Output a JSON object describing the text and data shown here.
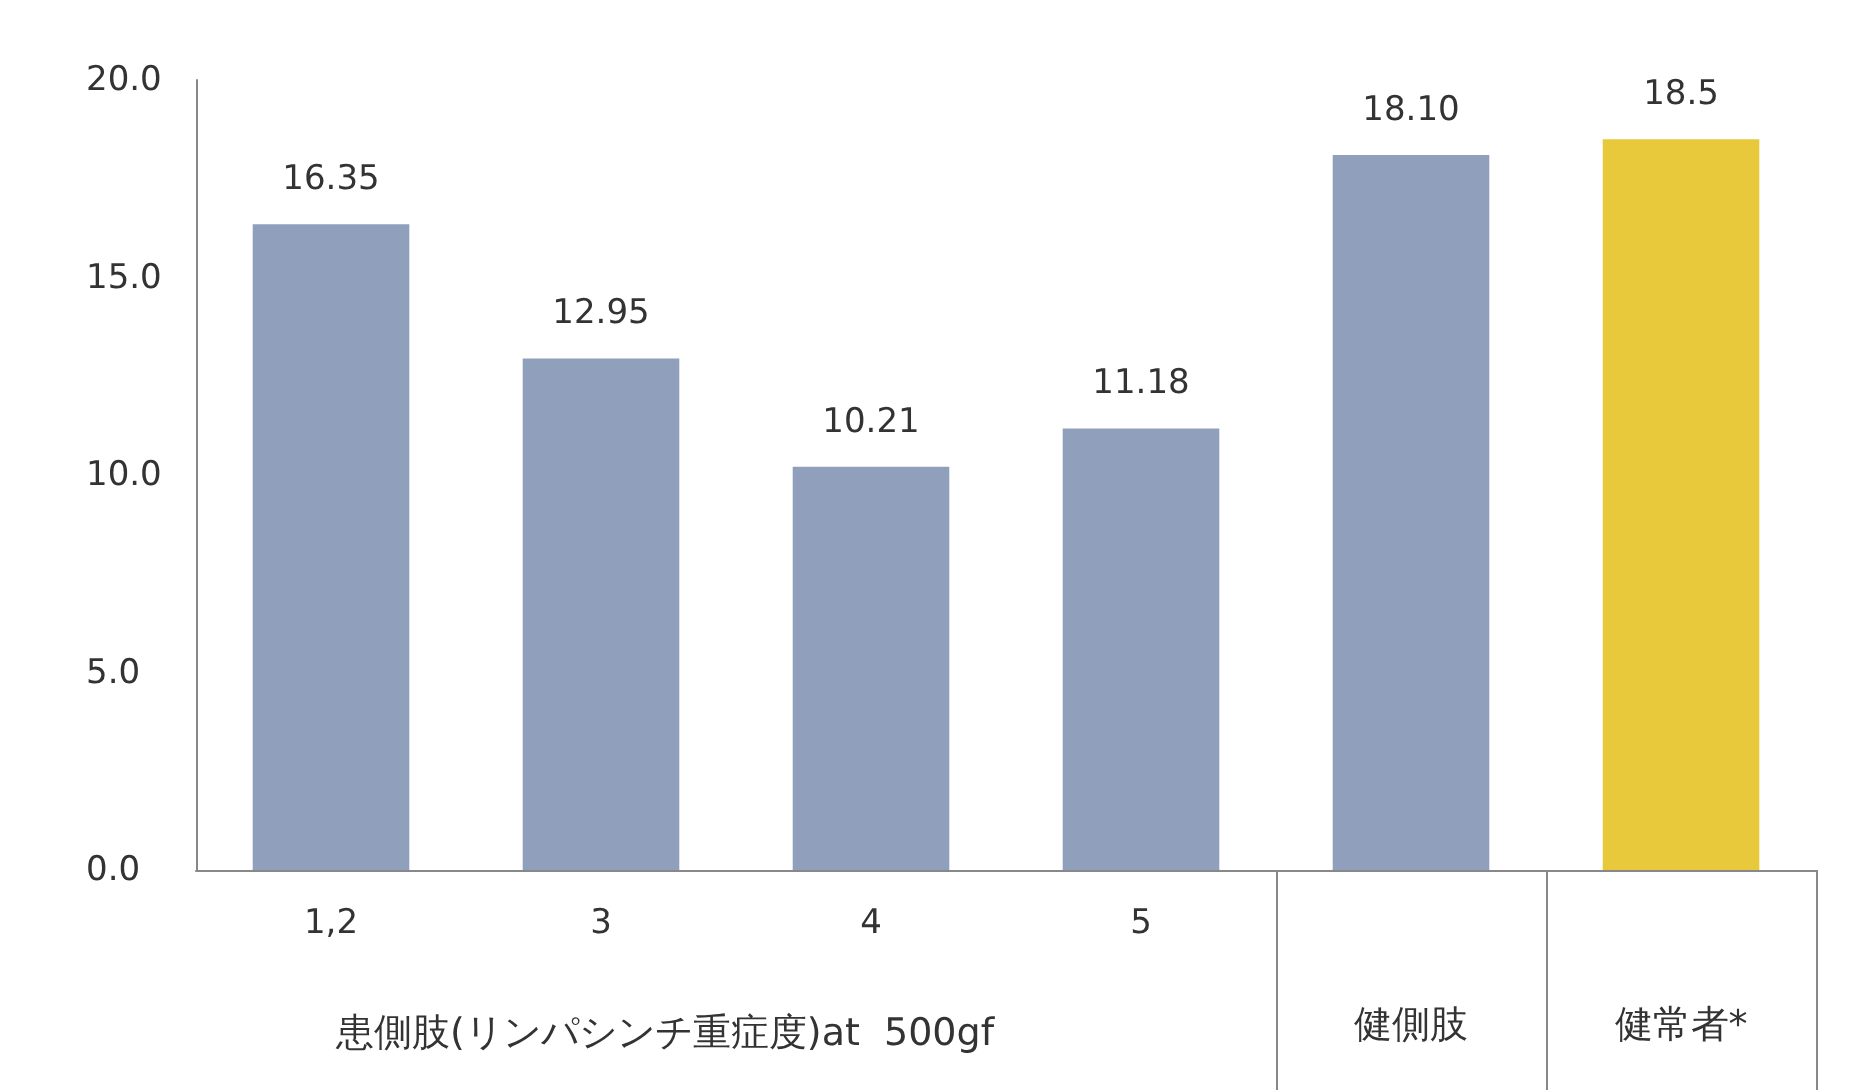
{
  "chart_data": {
    "type": "bar",
    "xlabel": "患側肢(リンパシンチ重症度)at  500gf",
    "categories": [
      "1,2",
      "3",
      "4",
      "5",
      "健側肢",
      "健常者*"
    ],
    "values": [
      16.35,
      12.95,
      10.21,
      11.18,
      18.1,
      18.5
    ],
    "value_labels": [
      "16.35",
      "12.95",
      "10.21",
      "11.18",
      "18.10",
      "18.5"
    ],
    "colors": [
      "#8f9fbc",
      "#8f9fbc",
      "#8f9fbc",
      "#8f9fbc",
      "#8f9fbc",
      "#e8c93c"
    ],
    "ylim": [
      0,
      20
    ],
    "yticks": [
      {
        "value": 0,
        "label": "0.0"
      },
      {
        "value": 5,
        "label": "5.0"
      },
      {
        "value": 10,
        "label": "10.0"
      },
      {
        "value": 15,
        "label": "15.0"
      },
      {
        "value": 20,
        "label": "20.0"
      }
    ],
    "grid": false
  }
}
